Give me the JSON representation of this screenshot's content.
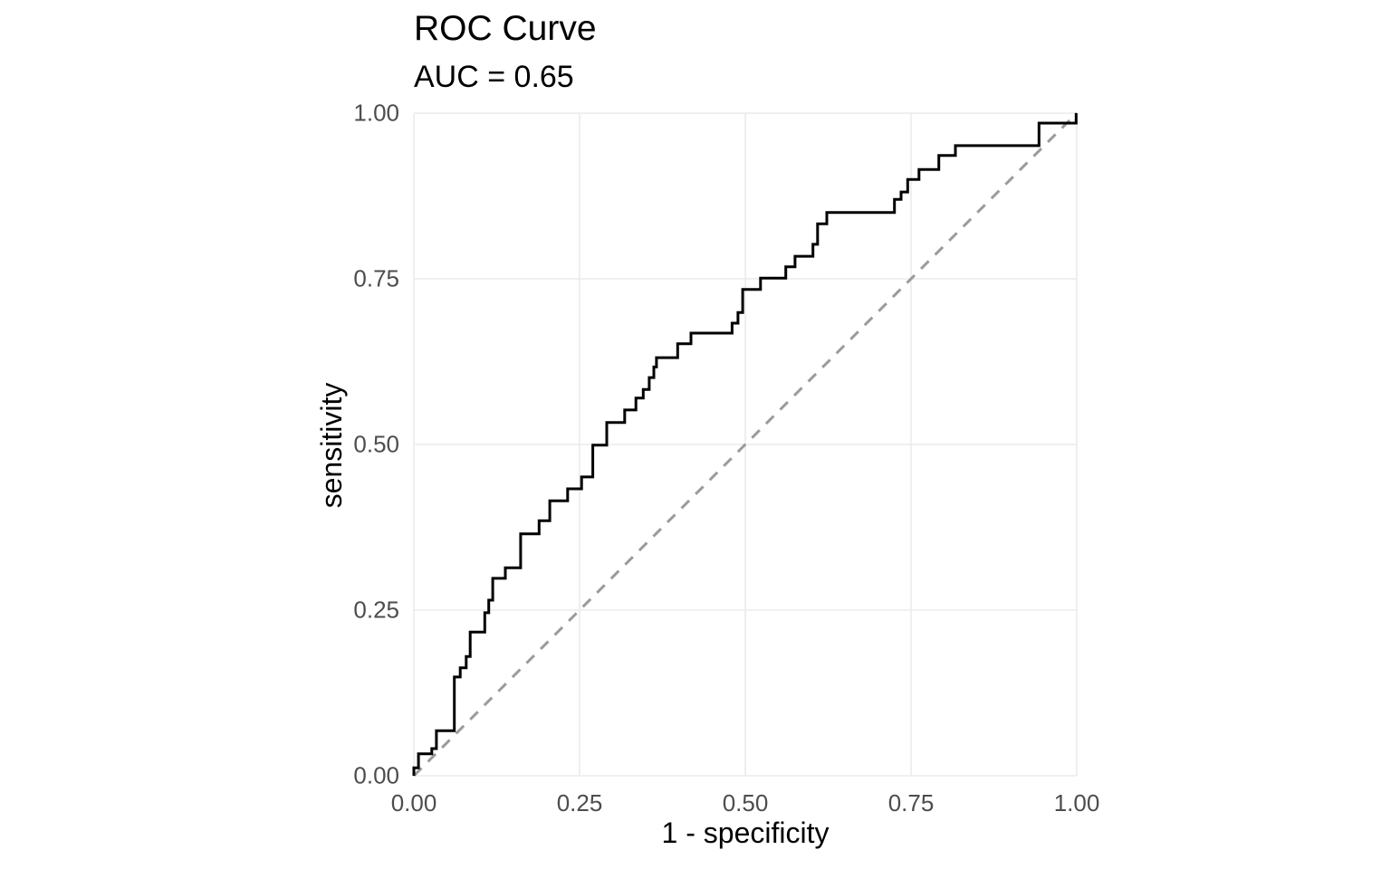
{
  "title": "ROC Curve",
  "subtitle": "AUC = 0.65",
  "colors": {
    "background": "#ffffff",
    "gridline": "#ebebeb",
    "tick_label": "#4d4d4d",
    "text": "#000000",
    "roc_curve": "#000000",
    "reference_line": "#9b9b9b"
  },
  "chart_data": {
    "type": "line",
    "title": "ROC Curve",
    "subtitle": "AUC = 0.65",
    "auc": 0.65,
    "xlabel": "1 - specificity",
    "ylabel": "sensitivity",
    "xlim": [
      0,
      1
    ],
    "ylim": [
      0,
      1
    ],
    "grid": "major-only",
    "legend": "none",
    "x_ticks": {
      "values": [
        0,
        0.25,
        0.5,
        0.75,
        1
      ],
      "labels": [
        "0.00",
        "0.25",
        "0.50",
        "0.75",
        "1.00"
      ]
    },
    "y_ticks": {
      "values": [
        0,
        0.25,
        0.5,
        0.75,
        1
      ],
      "labels": [
        "0.00",
        "0.25",
        "0.50",
        "0.75",
        "1.00"
      ]
    },
    "series": [
      {
        "name": "ROC curve",
        "type": "step",
        "color": "#000000",
        "width": 3,
        "dash": "solid",
        "points": [
          [
            0.0,
            0.0
          ],
          [
            0.0,
            0.012
          ],
          [
            0.007,
            0.012
          ],
          [
            0.007,
            0.033
          ],
          [
            0.027,
            0.033
          ],
          [
            0.027,
            0.041
          ],
          [
            0.034,
            0.041
          ],
          [
            0.034,
            0.068
          ],
          [
            0.061,
            0.068
          ],
          [
            0.061,
            0.149
          ],
          [
            0.07,
            0.149
          ],
          [
            0.07,
            0.163
          ],
          [
            0.079,
            0.163
          ],
          [
            0.079,
            0.18
          ],
          [
            0.085,
            0.18
          ],
          [
            0.085,
            0.217
          ],
          [
            0.107,
            0.217
          ],
          [
            0.107,
            0.246
          ],
          [
            0.113,
            0.246
          ],
          [
            0.113,
            0.265
          ],
          [
            0.119,
            0.265
          ],
          [
            0.119,
            0.298
          ],
          [
            0.138,
            0.298
          ],
          [
            0.138,
            0.314
          ],
          [
            0.161,
            0.314
          ],
          [
            0.161,
            0.365
          ],
          [
            0.189,
            0.365
          ],
          [
            0.189,
            0.385
          ],
          [
            0.205,
            0.385
          ],
          [
            0.205,
            0.415
          ],
          [
            0.232,
            0.415
          ],
          [
            0.232,
            0.433
          ],
          [
            0.253,
            0.433
          ],
          [
            0.253,
            0.451
          ],
          [
            0.27,
            0.451
          ],
          [
            0.27,
            0.499
          ],
          [
            0.291,
            0.499
          ],
          [
            0.291,
            0.533
          ],
          [
            0.318,
            0.533
          ],
          [
            0.318,
            0.552
          ],
          [
            0.335,
            0.552
          ],
          [
            0.335,
            0.57
          ],
          [
            0.346,
            0.57
          ],
          [
            0.346,
            0.583
          ],
          [
            0.355,
            0.583
          ],
          [
            0.355,
            0.601
          ],
          [
            0.362,
            0.601
          ],
          [
            0.362,
            0.617
          ],
          [
            0.366,
            0.617
          ],
          [
            0.366,
            0.631
          ],
          [
            0.398,
            0.631
          ],
          [
            0.398,
            0.652
          ],
          [
            0.418,
            0.652
          ],
          [
            0.418,
            0.668
          ],
          [
            0.48,
            0.668
          ],
          [
            0.48,
            0.683
          ],
          [
            0.489,
            0.683
          ],
          [
            0.489,
            0.699
          ],
          [
            0.496,
            0.699
          ],
          [
            0.496,
            0.734
          ],
          [
            0.523,
            0.734
          ],
          [
            0.523,
            0.751
          ],
          [
            0.561,
            0.751
          ],
          [
            0.561,
            0.768
          ],
          [
            0.575,
            0.768
          ],
          [
            0.575,
            0.784
          ],
          [
            0.602,
            0.784
          ],
          [
            0.602,
            0.802
          ],
          [
            0.609,
            0.802
          ],
          [
            0.609,
            0.833
          ],
          [
            0.623,
            0.833
          ],
          [
            0.623,
            0.85
          ],
          [
            0.725,
            0.85
          ],
          [
            0.725,
            0.87
          ],
          [
            0.735,
            0.87
          ],
          [
            0.735,
            0.881
          ],
          [
            0.745,
            0.881
          ],
          [
            0.745,
            0.9
          ],
          [
            0.762,
            0.9
          ],
          [
            0.762,
            0.915
          ],
          [
            0.792,
            0.915
          ],
          [
            0.792,
            0.936
          ],
          [
            0.817,
            0.936
          ],
          [
            0.817,
            0.951
          ],
          [
            0.943,
            0.951
          ],
          [
            0.943,
            0.985
          ],
          [
            0.999,
            0.985
          ],
          [
            0.999,
            1.0
          ]
        ]
      },
      {
        "name": "chance reference",
        "type": "line",
        "color": "#9b9b9b",
        "width": 3,
        "dash": "dashed",
        "points": [
          [
            0,
            0
          ],
          [
            1,
            1
          ]
        ]
      }
    ]
  }
}
